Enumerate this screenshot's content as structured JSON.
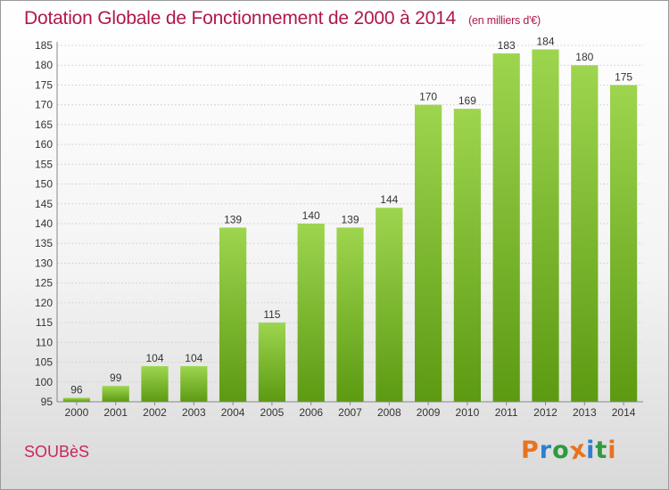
{
  "header": {
    "title": "Dotation Globale de Fonctionnement de 2000 à 2014",
    "subtitle": "(en milliers d'€)"
  },
  "footer": {
    "commune": "SOUBèS",
    "logo": "Proxiti",
    "logo_colors": [
      "#e8731f",
      "#2f7fd0",
      "#2f9a3e",
      "#e8731f",
      "#2f7fd0",
      "#2f9a3e",
      "#e8731f"
    ]
  },
  "chart_data": {
    "type": "bar",
    "title": "Dotation Globale de Fonctionnement de 2000 à 2014",
    "subtitle": "(en milliers d'€)",
    "categories": [
      "2000",
      "2001",
      "2002",
      "2003",
      "2004",
      "2005",
      "2006",
      "2007",
      "2008",
      "2009",
      "2010",
      "2011",
      "2012",
      "2013",
      "2014"
    ],
    "values": [
      96,
      99,
      104,
      104,
      139,
      115,
      140,
      139,
      144,
      170,
      169,
      183,
      184,
      180,
      175
    ],
    "ylim": [
      95,
      185
    ],
    "yticks": [
      95,
      100,
      105,
      110,
      115,
      120,
      125,
      130,
      135,
      140,
      145,
      150,
      155,
      160,
      165,
      170,
      175,
      180,
      185
    ],
    "grid": true,
    "bar_color_top": "#9ed54f",
    "bar_color_bottom": "#5c9a12"
  }
}
